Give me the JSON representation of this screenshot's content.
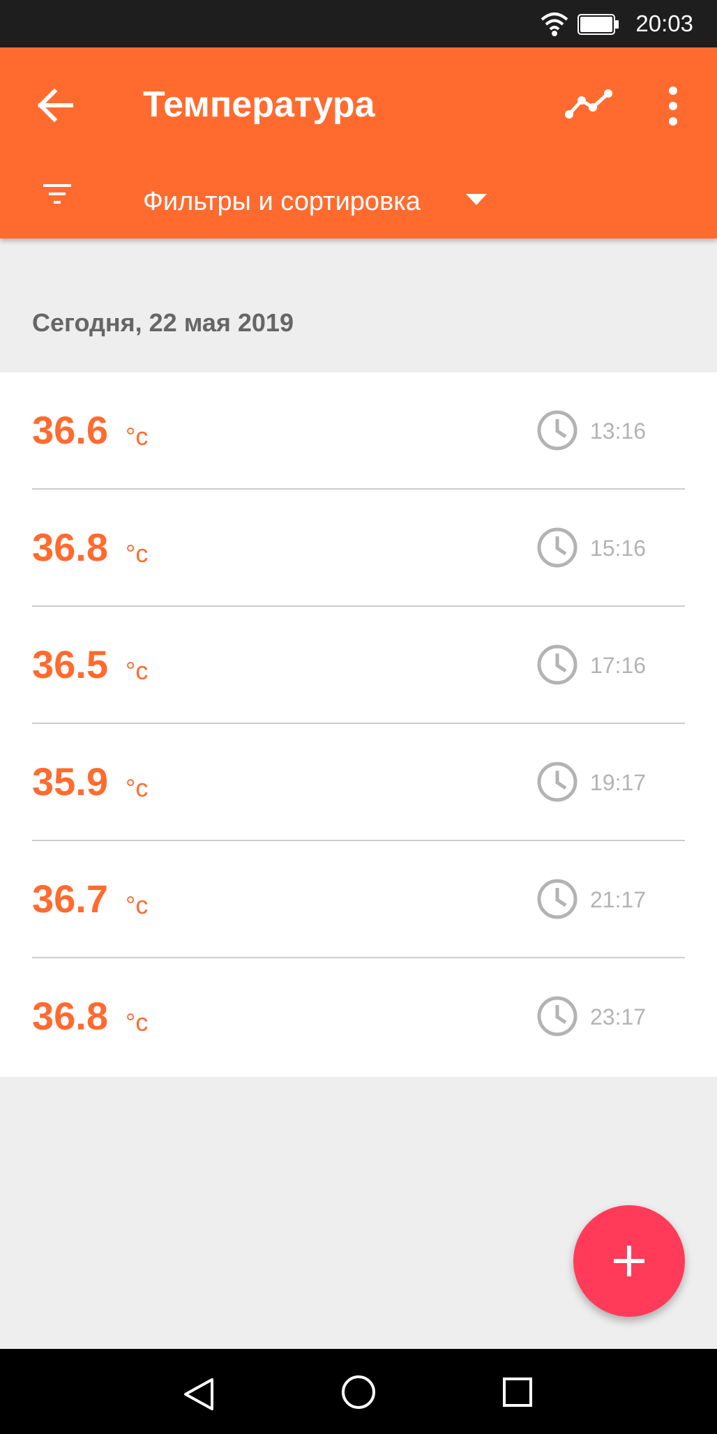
{
  "status_bar": {
    "time": "20:03"
  },
  "app_bar": {
    "title": "Температура",
    "filter_label": "Фильтры и сортировка",
    "accent_color": "#ff6b2f"
  },
  "date_header": "Сегодня, 22 мая 2019",
  "records": [
    {
      "value": "36.6",
      "unit": "°c",
      "time": "13:16"
    },
    {
      "value": "36.8",
      "unit": "°c",
      "time": "15:16"
    },
    {
      "value": "36.5",
      "unit": "°c",
      "time": "17:16"
    },
    {
      "value": "35.9",
      "unit": "°c",
      "time": "19:17"
    },
    {
      "value": "36.7",
      "unit": "°c",
      "time": "21:17"
    },
    {
      "value": "36.8",
      "unit": "°c",
      "time": "23:17"
    }
  ],
  "icons": {
    "back": "arrow-left-icon",
    "chart": "line-chart-icon",
    "more": "more-vertical-icon",
    "filter": "filter-icon",
    "clock": "clock-icon",
    "fab": "plus-icon"
  },
  "colors": {
    "temperature": "#ff6b2f",
    "fab": "#ff3b59",
    "time": "#b3b3b3"
  }
}
